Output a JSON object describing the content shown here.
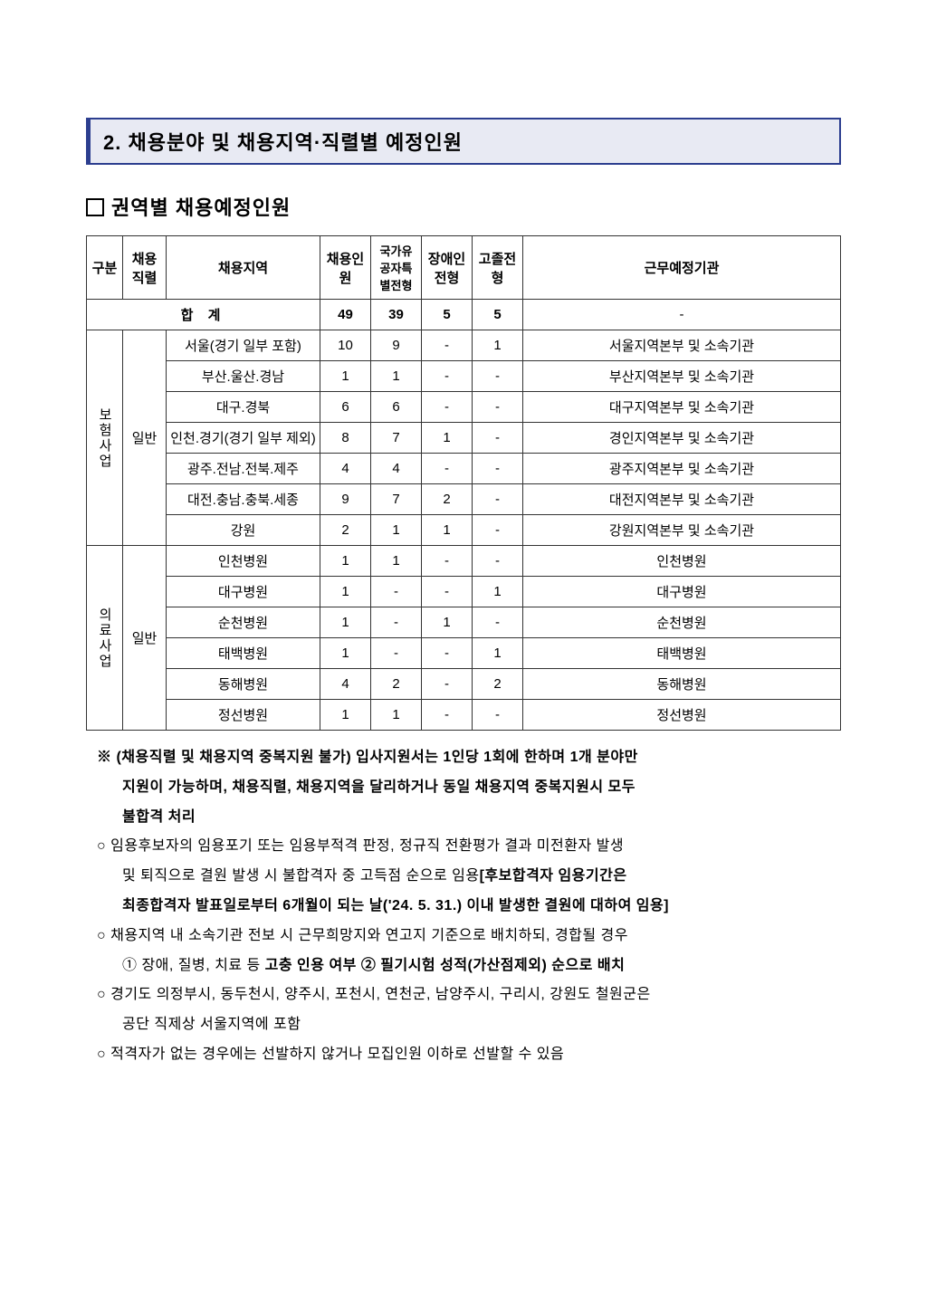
{
  "section": {
    "title": "2. 채용분야 및 채용지역·직렬별 예정인원"
  },
  "subtitle": "권역별 채용예정인원",
  "table": {
    "headers": {
      "gubun": "구분",
      "jik": "채용직렬",
      "region": "채용지역",
      "count": "채용인원",
      "merit": "국가유공자특별전형",
      "disabled": "장애인전형",
      "hs": "고졸전형",
      "workplace": "근무예정기관"
    },
    "total": {
      "label": "합 계",
      "count": "49",
      "merit": "39",
      "disabled": "5",
      "hs": "5",
      "workplace": "-"
    },
    "group1": {
      "name": "보험사업",
      "jik": "일반",
      "rows": [
        {
          "region": "서울(경기 일부 포함)",
          "count": "10",
          "merit": "9",
          "disabled": "-",
          "hs": "1",
          "workplace": "서울지역본부 및 소속기관"
        },
        {
          "region": "부산.울산.경남",
          "count": "1",
          "merit": "1",
          "disabled": "-",
          "hs": "-",
          "workplace": "부산지역본부 및 소속기관"
        },
        {
          "region": "대구.경북",
          "count": "6",
          "merit": "6",
          "disabled": "-",
          "hs": "-",
          "workplace": "대구지역본부 및 소속기관"
        },
        {
          "region": "인천.경기(경기 일부 제외)",
          "count": "8",
          "merit": "7",
          "disabled": "1",
          "hs": "-",
          "workplace": "경인지역본부 및 소속기관"
        },
        {
          "region": "광주.전남.전북.제주",
          "count": "4",
          "merit": "4",
          "disabled": "-",
          "hs": "-",
          "workplace": "광주지역본부 및 소속기관"
        },
        {
          "region": "대전.충남.충북.세종",
          "count": "9",
          "merit": "7",
          "disabled": "2",
          "hs": "-",
          "workplace": "대전지역본부 및 소속기관"
        },
        {
          "region": "강원",
          "count": "2",
          "merit": "1",
          "disabled": "1",
          "hs": "-",
          "workplace": "강원지역본부 및 소속기관"
        }
      ]
    },
    "group2": {
      "name": "의료사업",
      "jik": "일반",
      "rows": [
        {
          "region": "인천병원",
          "count": "1",
          "merit": "1",
          "disabled": "-",
          "hs": "-",
          "workplace": "인천병원"
        },
        {
          "region": "대구병원",
          "count": "1",
          "merit": "-",
          "disabled": "-",
          "hs": "1",
          "workplace": "대구병원"
        },
        {
          "region": "순천병원",
          "count": "1",
          "merit": "-",
          "disabled": "1",
          "hs": "-",
          "workplace": "순천병원"
        },
        {
          "region": "태백병원",
          "count": "1",
          "merit": "-",
          "disabled": "-",
          "hs": "1",
          "workplace": "태백병원"
        },
        {
          "region": "동해병원",
          "count": "4",
          "merit": "2",
          "disabled": "-",
          "hs": "2",
          "workplace": "동해병원"
        },
        {
          "region": "정선병원",
          "count": "1",
          "merit": "1",
          "disabled": "-",
          "hs": "-",
          "workplace": "정선병원"
        }
      ]
    }
  },
  "notes": {
    "n1a": "※ (채용직렬 및 채용지역 중복지원 불가) 입사지원서는 1인당 1회에 한하며 1개 분야만",
    "n1b": "지원이 가능하며, 채용직렬, 채용지역을 달리하거나 동일 채용지역 중복지원시 모두",
    "n1c": "불합격 처리",
    "n2a": "○ 임용후보자의 임용포기 또는 임용부적격 판정, 정규직 전환평가 결과 미전환자 발생",
    "n2b_pre": "및 퇴직으로 결원 발생 시 불합격자 중 고득점 순으로 임용",
    "n2b_bold": "[후보합격자 임용기간은",
    "n2c_bold": "최종합격자 발표일로부터 6개월이 되는 날('24. 5. 31.) 이내 발생한 결원에 대하여 임용]",
    "n3a": "○ 채용지역 내 소속기관 전보 시 근무희망지와 연고지 기준으로 배치하되, 경합될 경우",
    "n3b_pre": "① 장애, 질병, 치료 등 ",
    "n3b_bold": "고충 인용 여부 ② 필기시험 성적(가산점제외) 순으로 배치",
    "n4a": "○ 경기도 의정부시, 동두천시, 양주시, 포천시, 연천군, 남양주시, 구리시, 강원도 철원군은",
    "n4b": "공단 직제상 서울지역에 포함",
    "n5": "○ 적격자가 없는 경우에는 선발하지 않거나 모집인원 이하로 선발할 수 있음"
  }
}
